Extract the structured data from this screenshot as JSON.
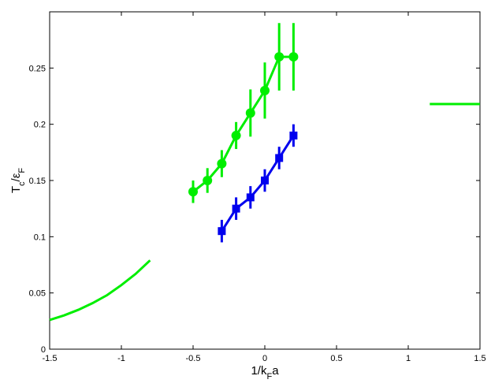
{
  "chart_data": {
    "type": "line",
    "xlabel": [
      {
        "text": "1/k"
      },
      {
        "text": "F",
        "sub": true
      },
      {
        "text": "a"
      }
    ],
    "ylabel": [
      {
        "text": "T"
      },
      {
        "text": "c",
        "sub": true
      },
      {
        "text": "/ε"
      },
      {
        "text": "F",
        "sub": true
      }
    ],
    "xlim": [
      -1.5,
      1.5
    ],
    "ylim": [
      0,
      0.3
    ],
    "xticks": [
      -1.5,
      -1,
      -0.5,
      0,
      0.5,
      1,
      1.5
    ],
    "yticks": [
      0,
      0.05,
      0.1,
      0.15,
      0.2,
      0.25
    ],
    "series": [
      {
        "color": "#00ee00",
        "marker": "circle",
        "x": [
          -0.5,
          -0.4,
          -0.3,
          -0.2,
          -0.1,
          0,
          0.1,
          0.2
        ],
        "values": [
          0.14,
          0.15,
          0.165,
          0.19,
          0.21,
          0.23,
          0.26,
          0.26
        ],
        "errors": [
          0.01,
          0.011,
          0.012,
          0.012,
          0.021,
          0.025,
          0.03,
          0.03
        ]
      },
      {
        "color": "#0000ee",
        "marker": "square",
        "x": [
          -0.3,
          -0.2,
          -0.1,
          0,
          0.1,
          0.2
        ],
        "values": [
          0.105,
          0.125,
          0.135,
          0.15,
          0.17,
          0.19
        ],
        "errors": [
          0.01,
          0.01,
          0.01,
          0.01,
          0.01,
          0.01
        ]
      },
      {
        "color": "#00ee00",
        "x": [
          -1.5,
          -1.4,
          -1.3,
          -1.2,
          -1.1,
          -1.0,
          -0.9,
          -0.8
        ],
        "values": [
          0.026,
          0.03,
          0.035,
          0.041,
          0.048,
          0.057,
          0.067,
          0.079
        ]
      },
      {
        "color": "#00ee00",
        "x": [
          1.15,
          1.5
        ],
        "values": [
          0.218,
          0.218
        ]
      }
    ]
  }
}
